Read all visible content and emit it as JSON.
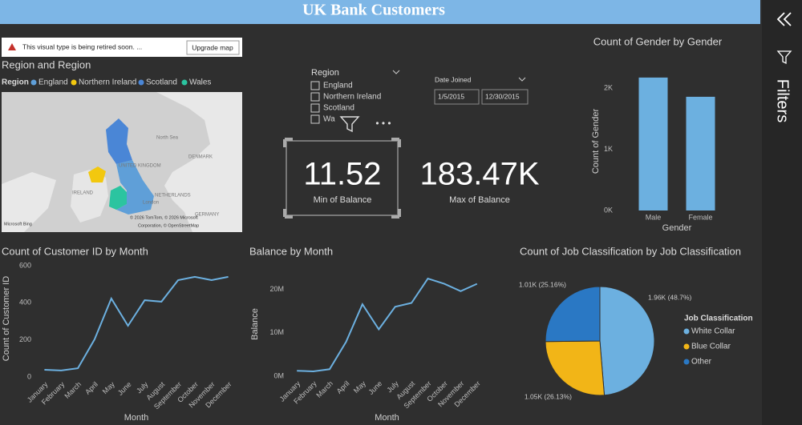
{
  "header": {
    "title": "UK Bank Customers"
  },
  "warning": {
    "text": "This visual type is being retired soon. ...",
    "button": "Upgrade map"
  },
  "map": {
    "title": "Region and Region",
    "legend_title": "Region",
    "legend": [
      {
        "name": "England",
        "color": "#5f9fd8"
      },
      {
        "name": "Northern Ireland",
        "color": "#f2c80f"
      },
      {
        "name": "Scotland",
        "color": "#4a86d6"
      },
      {
        "name": "Wales",
        "color": "#2bc4a0"
      }
    ],
    "labels": [
      "North Sea",
      "UNITED KINGDOM",
      "IRELAND",
      "DENMARK",
      "NETHERLANDS",
      "London",
      "GERMANY"
    ],
    "attribution": [
      "Microsoft Bing",
      "© 2026 TomTom, © 2026 Microsoft",
      "Corporation, © OpenStreetMap"
    ]
  },
  "slicer": {
    "title": "Region",
    "options": [
      "England",
      "Northern Ireland",
      "Scotland",
      "Wa"
    ]
  },
  "date_slicer": {
    "title": "Date Joined",
    "start": "1/5/2015",
    "end": "12/30/2015"
  },
  "cards": [
    {
      "value": "11.52",
      "label": "Min of Balance"
    },
    {
      "value": "183.47K",
      "label": "Max of Balance"
    }
  ],
  "side_panel": {
    "title": "Filters"
  },
  "chart_data": [
    {
      "type": "bar",
      "title": "Count of Gender by Gender",
      "x_label": "Gender",
      "y_label": "Count of Gender",
      "categories": [
        "Male",
        "Female"
      ],
      "values": [
        2170,
        1856
      ],
      "color": "#6cb0e0",
      "ylim": [
        0,
        2260
      ],
      "yticks": [
        {
          "value": 0,
          "label": "0K"
        },
        {
          "value": 1000,
          "label": "1K"
        },
        {
          "value": 2000,
          "label": "2K"
        }
      ],
      "grid": false
    },
    {
      "type": "line",
      "title": "Count of Customer ID by Month",
      "x_label": "Month",
      "y_label": "Count of Customer ID",
      "categories": [
        "January",
        "February",
        "March",
        "April",
        "May",
        "June",
        "July",
        "August",
        "September",
        "October",
        "November",
        "December"
      ],
      "values": [
        39,
        35,
        47,
        203,
        423,
        276,
        414,
        406,
        522,
        540,
        522,
        540
      ],
      "color": "#6cb0e0",
      "ylim": [
        0,
        630
      ],
      "yticks": [
        0,
        200,
        400,
        600
      ],
      "grid": false
    },
    {
      "type": "line",
      "title": "Balance by Month",
      "x_label": "Month",
      "y_label": "Balance",
      "categories": [
        "January",
        "February",
        "March",
        "April",
        "May",
        "June",
        "July",
        "August",
        "September",
        "October",
        "November",
        "December"
      ],
      "values": [
        1260000,
        1100000,
        1600000,
        7900000,
        16600000,
        10800000,
        16000000,
        16900000,
        22500000,
        21300000,
        19600000,
        21300000
      ],
      "color": "#6cb0e0",
      "ylim": [
        0,
        24000000
      ],
      "yticks": [
        {
          "value": 0,
          "label": "0M"
        },
        {
          "value": 10000000,
          "label": "10M"
        },
        {
          "value": 20000000,
          "label": "20M"
        }
      ],
      "grid": false
    },
    {
      "type": "pie",
      "title": "Count of Job Classification by Job Classification",
      "legend_title": "Job Classification",
      "categories": [
        "White Collar",
        "Blue Collar",
        "Other"
      ],
      "values": [
        48.7,
        26.13,
        25.16
      ],
      "value_labels": [
        "1.96K (48.7%)",
        "1.05K (26.13%)",
        "1.01K (25.16%)"
      ],
      "colors": [
        "#6cb0e0",
        "#f2b517",
        "#2a78c4"
      ],
      "legend": "right"
    }
  ]
}
